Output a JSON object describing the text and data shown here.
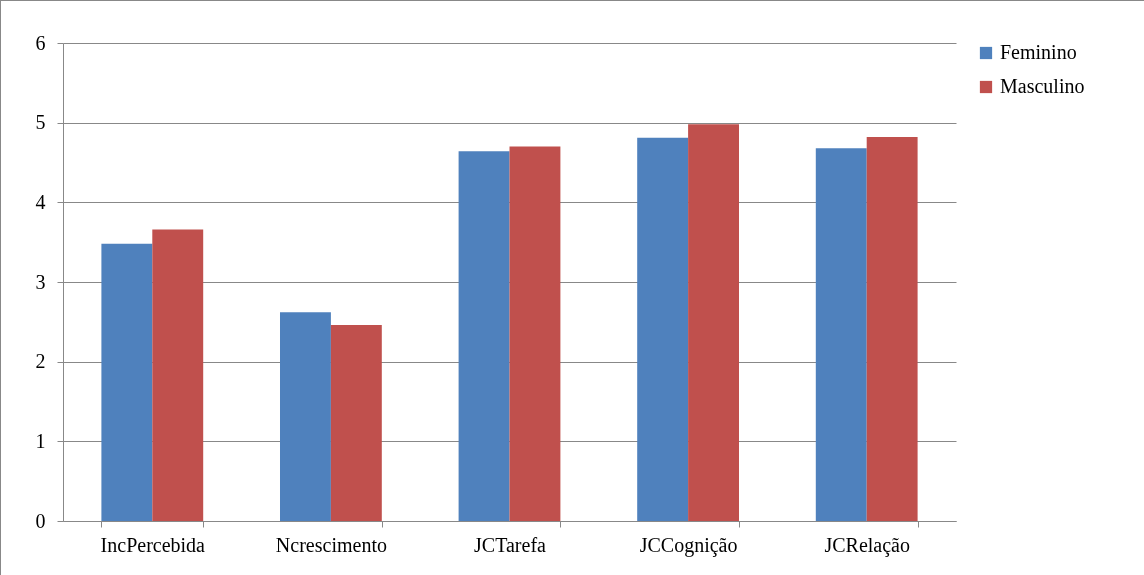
{
  "chart_data": {
    "type": "bar",
    "categories": [
      "IncPercebida",
      "Ncrescimento",
      "JCTarefa",
      "JCCognição",
      "JCRelação"
    ],
    "series": [
      {
        "name": "Feminino",
        "color": "#4f81bd",
        "values": [
          3.48,
          2.62,
          4.64,
          4.81,
          4.68
        ]
      },
      {
        "name": "Masculino",
        "color": "#c0504d",
        "values": [
          3.66,
          2.46,
          4.7,
          4.98,
          4.82
        ]
      }
    ],
    "ylim": [
      0,
      6
    ],
    "yticks": [
      0,
      1,
      2,
      3,
      4,
      5,
      6
    ],
    "grid": "y",
    "legend": "right"
  }
}
